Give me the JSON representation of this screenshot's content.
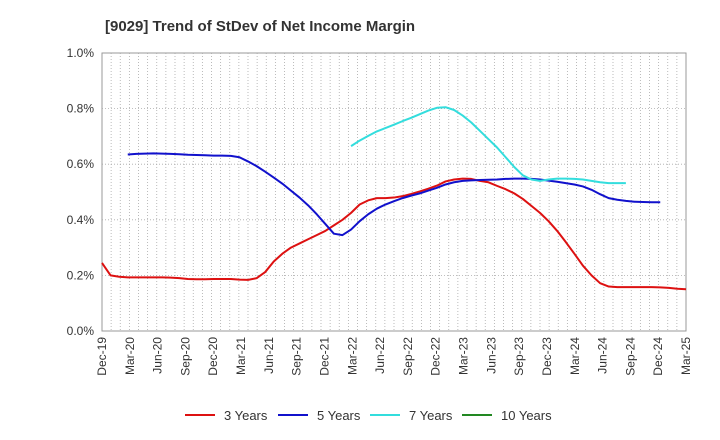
{
  "chart_data": {
    "type": "line",
    "title": "[9029]  Trend of StDev of Net Income Margin",
    "xlabel": "",
    "ylabel": "",
    "ylim": [
      0,
      1.0
    ],
    "y_ticks": [
      "0.0%",
      "0.2%",
      "0.4%",
      "0.6%",
      "0.8%",
      "1.0%"
    ],
    "y_tick_values": [
      0,
      0.2,
      0.4,
      0.6,
      0.8,
      1.0
    ],
    "x_tick_labels": [
      "Dec-19",
      "Mar-20",
      "Jun-20",
      "Sep-20",
      "Dec-20",
      "Mar-21",
      "Jun-21",
      "Sep-21",
      "Dec-21",
      "Mar-22",
      "Jun-22",
      "Sep-22",
      "Dec-22",
      "Mar-23",
      "Jun-23",
      "Sep-23",
      "Dec-23",
      "Mar-24",
      "Jun-24",
      "Sep-24",
      "Dec-24",
      "Mar-25"
    ],
    "x_month_count": 64,
    "grid": true,
    "legend_position": "bottom",
    "series": [
      {
        "name": "3 Years",
        "color": "#dd1111",
        "points": [
          [
            0,
            0.245
          ],
          [
            1,
            0.2
          ],
          [
            2,
            0.195
          ],
          [
            3,
            0.193
          ],
          [
            4,
            0.193
          ],
          [
            5,
            0.193
          ],
          [
            6,
            0.193
          ],
          [
            7,
            0.193
          ],
          [
            8,
            0.192
          ],
          [
            9,
            0.19
          ],
          [
            10,
            0.187
          ],
          [
            11,
            0.186
          ],
          [
            12,
            0.186
          ],
          [
            13,
            0.187
          ],
          [
            14,
            0.187
          ],
          [
            15,
            0.187
          ],
          [
            16,
            0.185
          ],
          [
            17,
            0.184
          ],
          [
            18,
            0.19
          ],
          [
            19,
            0.212
          ],
          [
            20,
            0.25
          ],
          [
            21,
            0.278
          ],
          [
            22,
            0.3
          ],
          [
            23,
            0.315
          ],
          [
            24,
            0.33
          ],
          [
            25,
            0.345
          ],
          [
            26,
            0.36
          ],
          [
            27,
            0.38
          ],
          [
            28,
            0.4
          ],
          [
            29,
            0.425
          ],
          [
            30,
            0.455
          ],
          [
            31,
            0.47
          ],
          [
            32,
            0.478
          ],
          [
            33,
            0.478
          ],
          [
            34,
            0.48
          ],
          [
            35,
            0.485
          ],
          [
            36,
            0.493
          ],
          [
            37,
            0.502
          ],
          [
            38,
            0.512
          ],
          [
            39,
            0.523
          ],
          [
            40,
            0.538
          ],
          [
            41,
            0.545
          ],
          [
            42,
            0.548
          ],
          [
            43,
            0.547
          ],
          [
            44,
            0.54
          ],
          [
            45,
            0.535
          ],
          [
            46,
            0.522
          ],
          [
            47,
            0.51
          ],
          [
            48,
            0.495
          ],
          [
            49,
            0.475
          ],
          [
            50,
            0.45
          ],
          [
            51,
            0.425
          ],
          [
            52,
            0.395
          ],
          [
            53,
            0.36
          ],
          [
            54,
            0.32
          ],
          [
            55,
            0.278
          ],
          [
            56,
            0.235
          ],
          [
            57,
            0.2
          ],
          [
            58,
            0.172
          ],
          [
            59,
            0.16
          ],
          [
            60,
            0.158
          ],
          [
            61,
            0.158
          ],
          [
            62,
            0.158
          ],
          [
            63,
            0.158
          ],
          [
            64,
            0.158
          ],
          [
            65,
            0.157
          ],
          [
            66,
            0.155
          ],
          [
            67,
            0.152
          ],
          [
            68,
            0.15
          ]
        ]
      },
      {
        "name": "5 Years",
        "color": "#1111cc",
        "points": [
          [
            3,
            0.635
          ],
          [
            4,
            0.637
          ],
          [
            5,
            0.638
          ],
          [
            6,
            0.639
          ],
          [
            7,
            0.638
          ],
          [
            8,
            0.637
          ],
          [
            9,
            0.636
          ],
          [
            10,
            0.634
          ],
          [
            11,
            0.633
          ],
          [
            12,
            0.632
          ],
          [
            13,
            0.631
          ],
          [
            14,
            0.631
          ],
          [
            15,
            0.63
          ],
          [
            16,
            0.625
          ],
          [
            17,
            0.61
          ],
          [
            18,
            0.593
          ],
          [
            19,
            0.573
          ],
          [
            20,
            0.552
          ],
          [
            21,
            0.53
          ],
          [
            22,
            0.505
          ],
          [
            23,
            0.48
          ],
          [
            24,
            0.452
          ],
          [
            25,
            0.42
          ],
          [
            26,
            0.385
          ],
          [
            27,
            0.35
          ],
          [
            28,
            0.345
          ],
          [
            29,
            0.365
          ],
          [
            30,
            0.395
          ],
          [
            31,
            0.42
          ],
          [
            32,
            0.44
          ],
          [
            33,
            0.455
          ],
          [
            34,
            0.467
          ],
          [
            35,
            0.478
          ],
          [
            36,
            0.487
          ],
          [
            37,
            0.495
          ],
          [
            38,
            0.505
          ],
          [
            39,
            0.515
          ],
          [
            40,
            0.527
          ],
          [
            41,
            0.535
          ],
          [
            42,
            0.54
          ],
          [
            43,
            0.542
          ],
          [
            44,
            0.543
          ],
          [
            45,
            0.544
          ],
          [
            46,
            0.545
          ],
          [
            47,
            0.547
          ],
          [
            48,
            0.548
          ],
          [
            49,
            0.548
          ],
          [
            50,
            0.547
          ],
          [
            51,
            0.545
          ],
          [
            52,
            0.541
          ],
          [
            53,
            0.537
          ],
          [
            54,
            0.532
          ],
          [
            55,
            0.527
          ],
          [
            56,
            0.52
          ],
          [
            57,
            0.508
          ],
          [
            58,
            0.492
          ],
          [
            59,
            0.478
          ],
          [
            60,
            0.472
          ],
          [
            61,
            0.468
          ],
          [
            62,
            0.465
          ],
          [
            63,
            0.464
          ],
          [
            64,
            0.463
          ],
          [
            65,
            0.463
          ]
        ]
      },
      {
        "name": "7 Years",
        "color": "#33dddd",
        "points": [
          [
            29,
            0.665
          ],
          [
            30,
            0.685
          ],
          [
            31,
            0.702
          ],
          [
            32,
            0.718
          ],
          [
            33,
            0.73
          ],
          [
            34,
            0.742
          ],
          [
            35,
            0.755
          ],
          [
            36,
            0.767
          ],
          [
            37,
            0.78
          ],
          [
            38,
            0.793
          ],
          [
            39,
            0.803
          ],
          [
            40,
            0.805
          ],
          [
            41,
            0.795
          ],
          [
            42,
            0.775
          ],
          [
            43,
            0.75
          ],
          [
            44,
            0.72
          ],
          [
            45,
            0.69
          ],
          [
            46,
            0.66
          ],
          [
            47,
            0.625
          ],
          [
            48,
            0.59
          ],
          [
            49,
            0.56
          ],
          [
            50,
            0.545
          ],
          [
            51,
            0.54
          ],
          [
            52,
            0.545
          ],
          [
            53,
            0.548
          ],
          [
            54,
            0.548
          ],
          [
            55,
            0.547
          ],
          [
            56,
            0.545
          ],
          [
            57,
            0.54
          ],
          [
            58,
            0.535
          ],
          [
            59,
            0.532
          ],
          [
            60,
            0.532
          ],
          [
            61,
            0.532
          ]
        ]
      },
      {
        "name": "10 Years",
        "color": "#228822",
        "points": []
      }
    ]
  }
}
